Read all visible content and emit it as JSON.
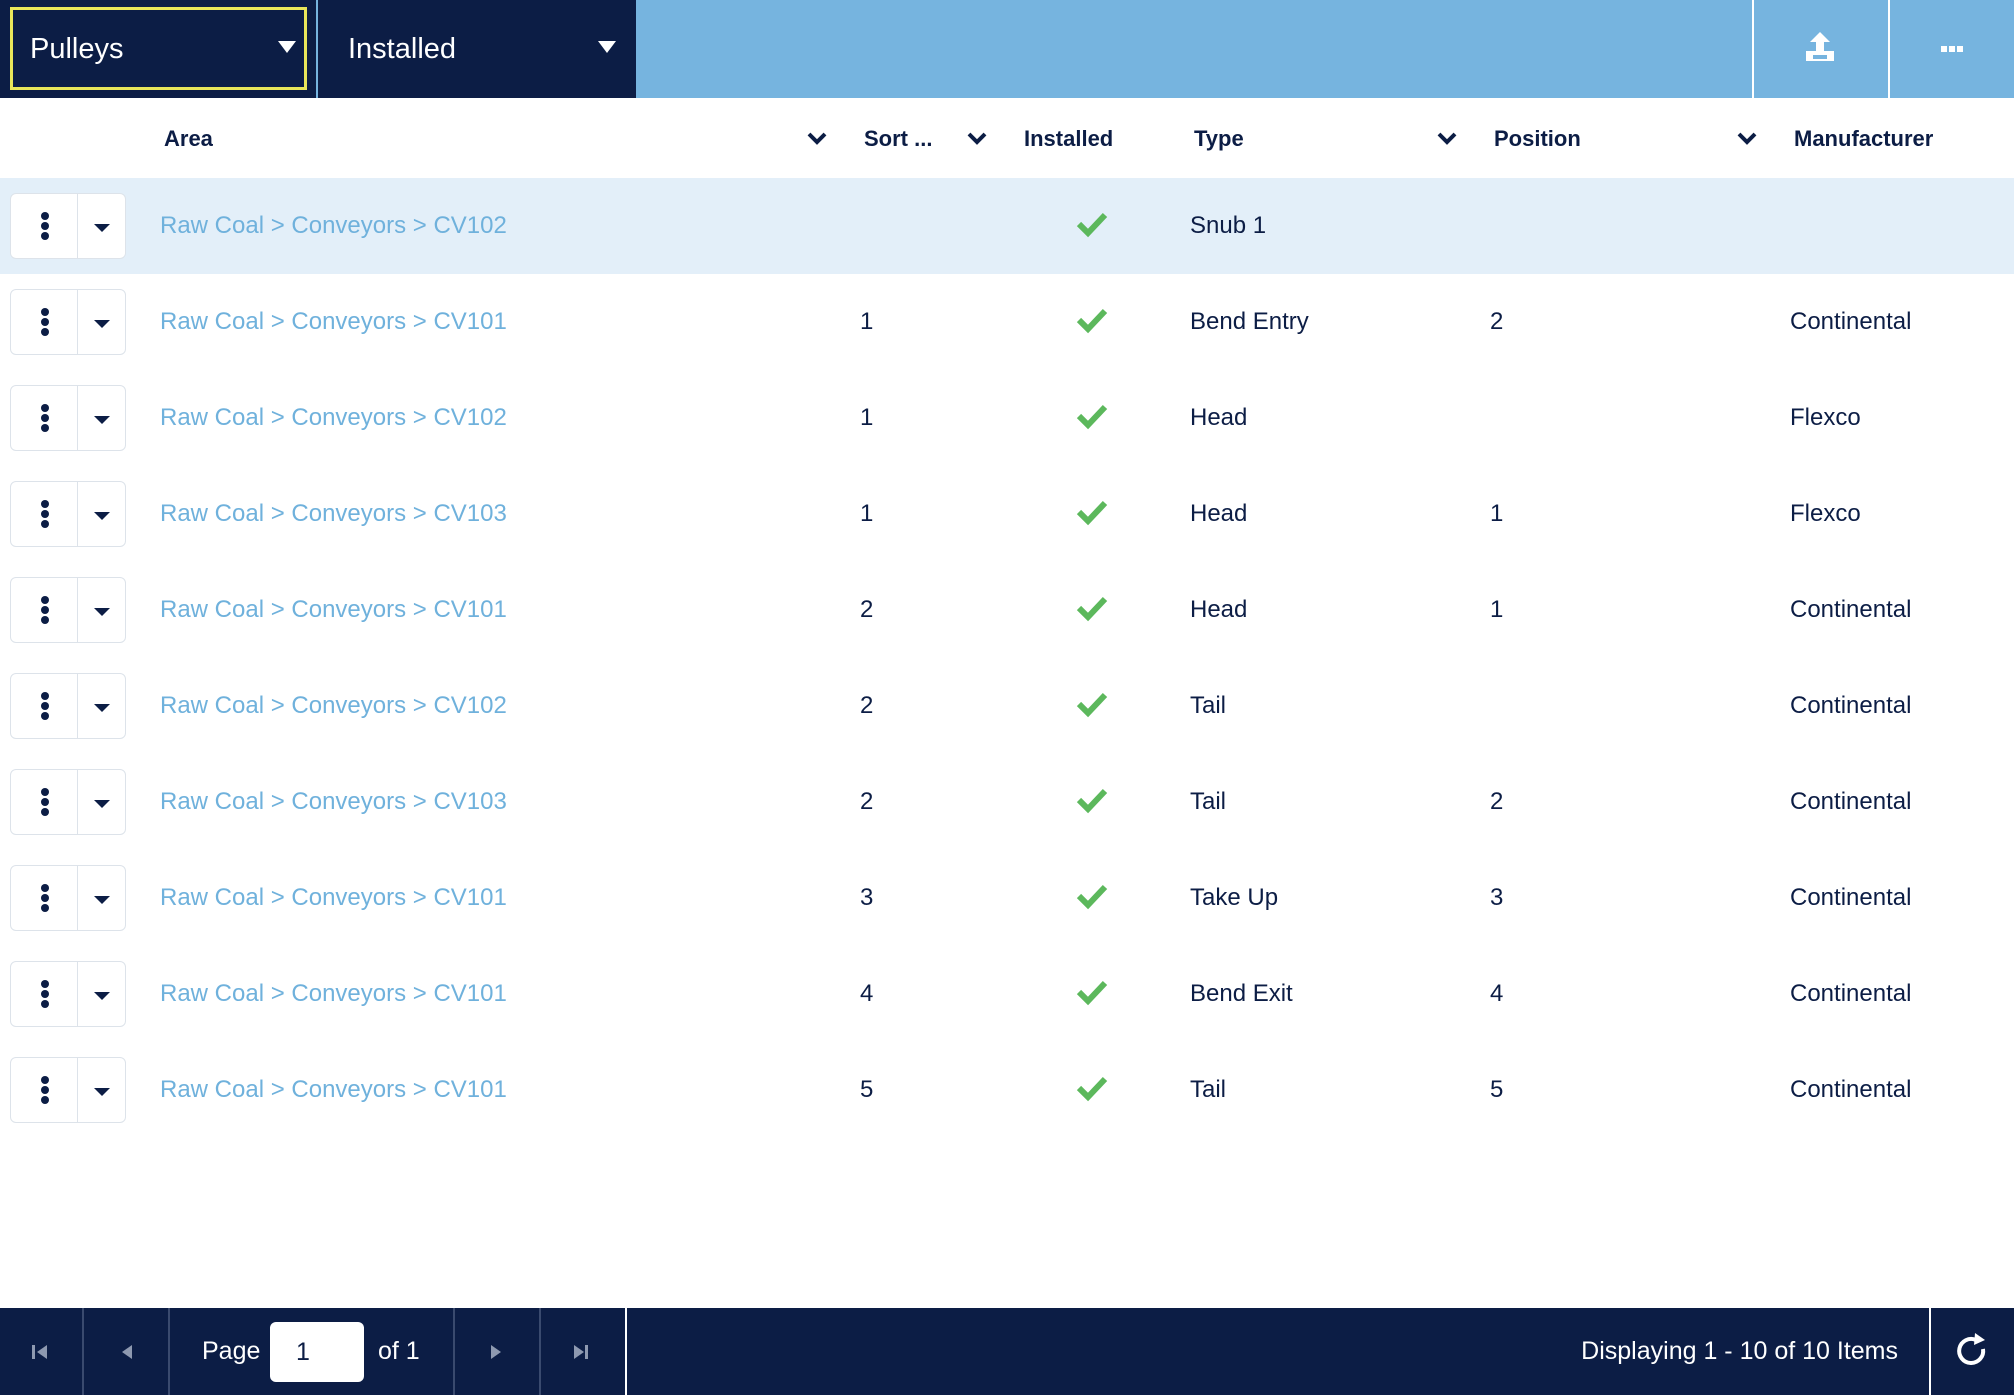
{
  "toolbar": {
    "category_dropdown": "Pulleys",
    "status_dropdown": "Installed",
    "upload_icon": "upload-icon",
    "more_icon": "ellipsis-icon"
  },
  "columns": {
    "area": "Area",
    "sort": "Sort ...",
    "installed": "Installed",
    "type": "Type",
    "position": "Position",
    "manufacturer": "Manufacturer"
  },
  "rows": [
    {
      "area": "Raw Coal > Conveyors > CV102",
      "sort": "",
      "installed": true,
      "type": "Snub 1",
      "position": "",
      "manufacturer": "",
      "selected": true
    },
    {
      "area": "Raw Coal > Conveyors > CV101",
      "sort": "1",
      "installed": true,
      "type": "Bend Entry",
      "position": "2",
      "manufacturer": "Continental"
    },
    {
      "area": "Raw Coal > Conveyors > CV102",
      "sort": "1",
      "installed": true,
      "type": "Head",
      "position": "",
      "manufacturer": "Flexco"
    },
    {
      "area": "Raw Coal > Conveyors > CV103",
      "sort": "1",
      "installed": true,
      "type": "Head",
      "position": "1",
      "manufacturer": "Flexco"
    },
    {
      "area": "Raw Coal > Conveyors > CV101",
      "sort": "2",
      "installed": true,
      "type": "Head",
      "position": "1",
      "manufacturer": "Continental"
    },
    {
      "area": "Raw Coal > Conveyors > CV102",
      "sort": "2",
      "installed": true,
      "type": "Tail",
      "position": "",
      "manufacturer": "Continental"
    },
    {
      "area": "Raw Coal > Conveyors > CV103",
      "sort": "2",
      "installed": true,
      "type": "Tail",
      "position": "2",
      "manufacturer": "Continental"
    },
    {
      "area": "Raw Coal > Conveyors > CV101",
      "sort": "3",
      "installed": true,
      "type": "Take Up",
      "position": "3",
      "manufacturer": "Continental"
    },
    {
      "area": "Raw Coal > Conveyors > CV101",
      "sort": "4",
      "installed": true,
      "type": "Bend Exit",
      "position": "4",
      "manufacturer": "Continental"
    },
    {
      "area": "Raw Coal > Conveyors > CV101",
      "sort": "5",
      "installed": true,
      "type": "Tail",
      "position": "5",
      "manufacturer": "Continental"
    }
  ],
  "pager": {
    "page_label": "Page",
    "page_value": "1",
    "of_label": "of 1",
    "display_text": "Displaying 1 - 10 of 10 Items"
  },
  "colors": {
    "navy": "#0c1d45",
    "toolbar_blue": "#76b4df",
    "link_blue": "#6fb1dc",
    "selected_row": "#e3eff9",
    "check_green": "#5cb85c"
  }
}
